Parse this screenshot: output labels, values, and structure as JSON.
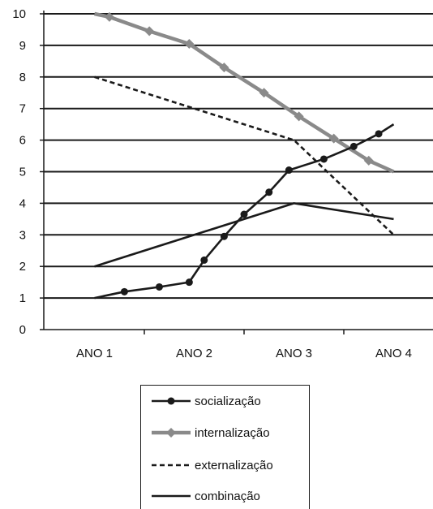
{
  "chart_data": {
    "type": "line",
    "title": "",
    "xlabel": "",
    "ylabel": "",
    "ylim": [
      0,
      10
    ],
    "y_ticks": [
      0,
      1,
      2,
      3,
      4,
      5,
      6,
      7,
      8,
      9,
      10
    ],
    "grid": true,
    "legend_position": "bottom",
    "categories": [
      "ANO 1",
      "ANO 2",
      "ANO 3",
      "ANO 4"
    ],
    "series": [
      {
        "name": "socialização",
        "style": "solid-circle-markers",
        "color": "#1a1a1a",
        "points": [
          [
            1.0,
            1.0
          ],
          [
            1.3,
            1.2
          ],
          [
            1.65,
            1.35
          ],
          [
            1.95,
            1.5
          ],
          [
            2.1,
            2.2
          ],
          [
            2.3,
            2.95
          ],
          [
            2.5,
            3.65
          ],
          [
            2.75,
            4.35
          ],
          [
            2.95,
            5.05
          ],
          [
            3.3,
            5.4
          ],
          [
            3.6,
            5.8
          ],
          [
            3.85,
            6.2
          ],
          [
            4.0,
            6.5
          ]
        ],
        "markers": [
          false,
          true,
          true,
          true,
          true,
          true,
          true,
          true,
          true,
          true,
          true,
          true,
          false
        ]
      },
      {
        "name": "internalização",
        "style": "thick-gray-diamond-markers",
        "color": "#8a8a8a",
        "points": [
          [
            1.0,
            10.0
          ],
          [
            1.15,
            9.9
          ],
          [
            1.55,
            9.45
          ],
          [
            1.95,
            9.05
          ],
          [
            2.3,
            8.3
          ],
          [
            2.7,
            7.5
          ],
          [
            3.05,
            6.75
          ],
          [
            3.4,
            6.05
          ],
          [
            3.75,
            5.35
          ],
          [
            4.0,
            5.0
          ]
        ],
        "markers": [
          false,
          true,
          true,
          true,
          true,
          true,
          true,
          true,
          true,
          false
        ]
      },
      {
        "name": "externalização",
        "style": "dashed",
        "color": "#1a1a1a",
        "points": [
          [
            1.0,
            8.0
          ],
          [
            2.0,
            7.0
          ],
          [
            3.0,
            6.0
          ],
          [
            4.0,
            3.0
          ]
        ]
      },
      {
        "name": "combinação",
        "style": "solid",
        "color": "#1a1a1a",
        "points": [
          [
            1.0,
            2.0
          ],
          [
            3.0,
            4.0
          ],
          [
            4.0,
            3.5
          ]
        ]
      }
    ]
  }
}
